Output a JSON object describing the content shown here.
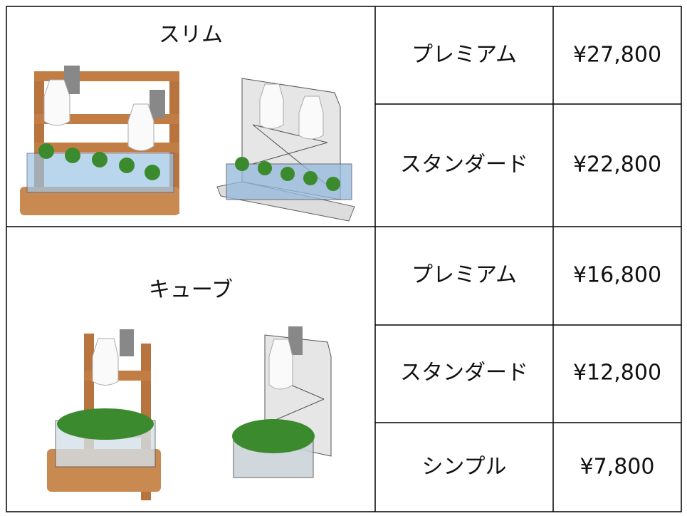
{
  "table": {
    "groups": [
      {
        "name": "スリム",
        "rows": [
          {
            "grade": "プレミアム",
            "price": "¥27,800"
          },
          {
            "grade": "スタンダード",
            "price": "¥22,800"
          }
        ]
      },
      {
        "name": "キューブ",
        "rows": [
          {
            "grade": "プレミアム",
            "price": "¥16,800"
          },
          {
            "grade": "スタンダード",
            "price": "¥12,800"
          },
          {
            "grade": "シンプル",
            "price": "¥7,800"
          }
        ]
      }
    ]
  }
}
